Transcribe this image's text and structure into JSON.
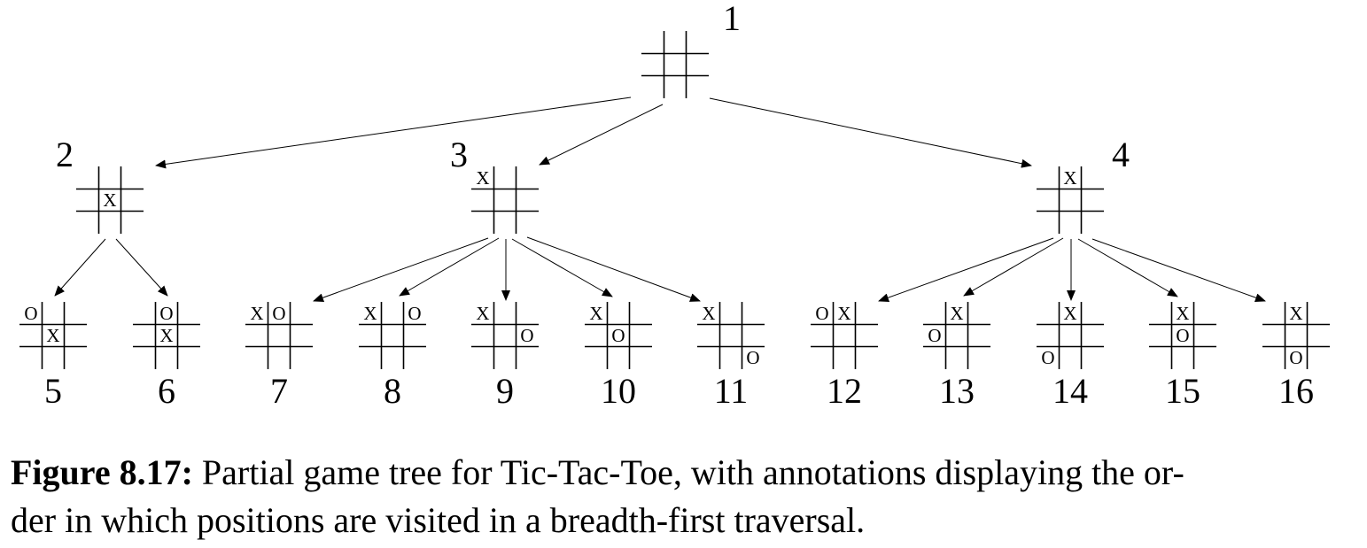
{
  "caption": {
    "figure_label": "Figure 8.17:",
    "text_line1": "Partial game tree for Tic-Tac-Toe, with annotations displaying the or-",
    "text_line2": "der in which positions are visited in a breadth-first traversal."
  },
  "tree": {
    "nodes": [
      {
        "id": 1,
        "label": "1",
        "parent": null,
        "board": [
          "",
          "",
          "",
          "",
          "",
          "",
          "",
          "",
          ""
        ]
      },
      {
        "id": 2,
        "label": "2",
        "parent": 1,
        "board": [
          "",
          "",
          "",
          "",
          "X",
          "",
          "",
          "",
          ""
        ]
      },
      {
        "id": 3,
        "label": "3",
        "parent": 1,
        "board": [
          "X",
          "",
          "",
          "",
          "",
          "",
          "",
          "",
          ""
        ]
      },
      {
        "id": 4,
        "label": "4",
        "parent": 1,
        "board": [
          "",
          "X",
          "",
          "",
          "",
          "",
          "",
          "",
          ""
        ]
      },
      {
        "id": 5,
        "label": "5",
        "parent": 2,
        "board": [
          "O",
          "",
          "",
          "",
          "X",
          "",
          "",
          "",
          ""
        ]
      },
      {
        "id": 6,
        "label": "6",
        "parent": 2,
        "board": [
          "",
          "O",
          "",
          "",
          "X",
          "",
          "",
          "",
          ""
        ]
      },
      {
        "id": 7,
        "label": "7",
        "parent": 3,
        "board": [
          "X",
          "O",
          "",
          "",
          "",
          "",
          "",
          "",
          ""
        ]
      },
      {
        "id": 8,
        "label": "8",
        "parent": 3,
        "board": [
          "X",
          "",
          "O",
          "",
          "",
          "",
          "",
          "",
          ""
        ]
      },
      {
        "id": 9,
        "label": "9",
        "parent": 3,
        "board": [
          "X",
          "",
          "",
          "",
          "",
          "O",
          "",
          "",
          ""
        ]
      },
      {
        "id": 10,
        "label": "10",
        "parent": 3,
        "board": [
          "X",
          "",
          "",
          "",
          "O",
          "",
          "",
          "",
          ""
        ]
      },
      {
        "id": 11,
        "label": "11",
        "parent": 3,
        "board": [
          "X",
          "",
          "",
          "",
          "",
          "",
          "",
          "",
          "O"
        ]
      },
      {
        "id": 12,
        "label": "12",
        "parent": 4,
        "board": [
          "O",
          "X",
          "",
          "",
          "",
          "",
          "",
          "",
          ""
        ]
      },
      {
        "id": 13,
        "label": "13",
        "parent": 4,
        "board": [
          "",
          "X",
          "",
          "O",
          "",
          "",
          "",
          "",
          ""
        ]
      },
      {
        "id": 14,
        "label": "14",
        "parent": 4,
        "board": [
          "",
          "X",
          "",
          "",
          "",
          "",
          "O",
          "",
          ""
        ]
      },
      {
        "id": 15,
        "label": "15",
        "parent": 4,
        "board": [
          "",
          "X",
          "",
          "",
          "O",
          "",
          "",
          "",
          ""
        ]
      },
      {
        "id": 16,
        "label": "16",
        "parent": 4,
        "board": [
          "",
          "X",
          "",
          "",
          "",
          "",
          "",
          "O",
          ""
        ]
      }
    ]
  }
}
